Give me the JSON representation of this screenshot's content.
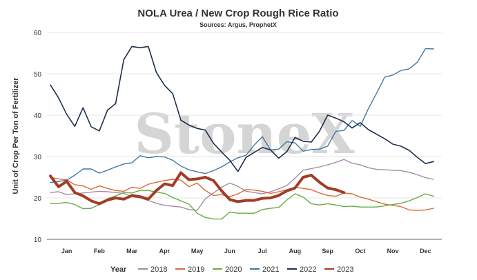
{
  "chart_data": {
    "type": "line",
    "title": "NOLA Urea / New Crop Rough Rice Ratio",
    "subtitle": "Sources: Argus, ProphetX",
    "xlabel": "",
    "ylabel": "Unit of Crop Per Ton of Fertilizer",
    "ylim": [
      10,
      60
    ],
    "yticks": [
      10,
      20,
      30,
      40,
      50,
      60
    ],
    "xlim": [
      0,
      12
    ],
    "month_labels": [
      "Jan",
      "Feb",
      "Mar",
      "Apr",
      "May",
      "Jun",
      "Jul",
      "Aug",
      "Sep",
      "Oct",
      "Nov",
      "Dec"
    ],
    "watermark": "StoneX",
    "legend_title": "Year",
    "legend_position": "bottom",
    "grid": "horizontal",
    "series": [
      {
        "name": "2018",
        "color": "#a58aa9",
        "width": 1.4,
        "x": [
          0.0,
          0.25,
          0.5,
          0.75,
          1.0,
          1.25,
          1.5,
          1.75,
          2.0,
          2.25,
          2.5,
          2.75,
          3.0,
          3.25,
          3.5,
          3.75,
          4.0,
          4.25,
          4.5,
          4.75,
          5.0,
          5.25,
          5.5,
          5.75,
          6.0,
          6.25,
          6.5,
          6.75,
          7.0,
          7.25,
          7.5,
          7.75,
          8.0,
          8.25,
          8.5,
          8.75,
          9.0,
          9.25,
          9.5,
          9.75,
          10.0,
          10.25,
          10.5,
          10.75,
          11.0,
          11.25,
          11.5,
          11.75
        ],
        "y": [
          21.3,
          21.5,
          20.8,
          21.0,
          21.2,
          21.4,
          21.6,
          21.5,
          21.3,
          21.1,
          20.3,
          20.0,
          19.4,
          18.7,
          18.2,
          18.0,
          17.8,
          17.2,
          17.0,
          19.8,
          21.2,
          22.6,
          23.6,
          22.8,
          21.6,
          21.3,
          21.0,
          21.5,
          22.2,
          23.0,
          24.8,
          26.7,
          27.1,
          27.5,
          28.0,
          28.6,
          29.3,
          28.4,
          28.0,
          27.3,
          26.9,
          26.8,
          26.7,
          26.6,
          26.2,
          25.6,
          24.9,
          24.5
        ]
      },
      {
        "name": "2019",
        "color": "#d86a35",
        "width": 1.4,
        "x": [
          0.0,
          0.25,
          0.5,
          0.75,
          1.0,
          1.25,
          1.5,
          1.75,
          2.0,
          2.25,
          2.5,
          2.75,
          3.0,
          3.25,
          3.5,
          3.75,
          4.0,
          4.25,
          4.5,
          4.75,
          5.0,
          5.25,
          5.5,
          5.75,
          6.0,
          6.25,
          6.5,
          6.75,
          7.0,
          7.25,
          7.5,
          7.75,
          8.0,
          8.25,
          8.5,
          8.75,
          9.0,
          9.25,
          9.5,
          9.75,
          10.0,
          10.25,
          10.5,
          10.75,
          11.0,
          11.25,
          11.5,
          11.75
        ],
        "y": [
          25.0,
          24.6,
          24.4,
          23.2,
          22.9,
          22.1,
          22.9,
          22.3,
          21.8,
          21.6,
          22.6,
          22.3,
          23.3,
          23.8,
          24.2,
          24.5,
          24.3,
          22.7,
          23.6,
          21.8,
          20.6,
          20.8,
          20.3,
          21.0,
          22.0,
          21.9,
          21.6,
          21.1,
          21.5,
          22.0,
          22.6,
          22.3,
          22.0,
          21.2,
          20.6,
          20.4,
          21.2,
          21.0,
          20.2,
          19.7,
          19.1,
          18.5,
          18.2,
          17.9,
          17.1,
          17.0,
          17.1,
          17.5
        ]
      },
      {
        "name": "2020",
        "color": "#6aaa42",
        "width": 1.4,
        "x": [
          0.0,
          0.25,
          0.5,
          0.75,
          1.0,
          1.25,
          1.5,
          1.75,
          2.0,
          2.25,
          2.5,
          2.75,
          3.0,
          3.25,
          3.5,
          3.75,
          4.0,
          4.25,
          4.5,
          4.75,
          5.0,
          5.25,
          5.5,
          5.75,
          6.0,
          6.25,
          6.5,
          6.75,
          7.0,
          7.25,
          7.5,
          7.75,
          8.0,
          8.25,
          8.5,
          8.75,
          9.0,
          9.25,
          9.5,
          9.75,
          10.0,
          10.25,
          10.5,
          10.75,
          11.0,
          11.25,
          11.5,
          11.75
        ],
        "y": [
          18.7,
          18.7,
          18.9,
          18.4,
          17.4,
          17.5,
          18.4,
          19.8,
          20.5,
          21.3,
          21.2,
          21.8,
          21.8,
          21.4,
          21.1,
          20.1,
          19.3,
          18.5,
          16.3,
          15.3,
          14.9,
          14.9,
          16.6,
          16.3,
          16.3,
          16.3,
          17.2,
          17.5,
          17.7,
          19.5,
          21.0,
          20.2,
          18.6,
          18.3,
          18.6,
          18.3,
          17.9,
          18.0,
          17.8,
          17.8,
          17.8,
          18.1,
          18.4,
          18.7,
          19.3,
          20.1,
          21.0,
          20.4
        ]
      },
      {
        "name": "2021",
        "color": "#3e78a3",
        "width": 1.4,
        "x": [
          0.0,
          0.25,
          0.5,
          0.75,
          1.0,
          1.25,
          1.5,
          1.75,
          2.0,
          2.25,
          2.5,
          2.75,
          3.0,
          3.25,
          3.5,
          3.75,
          4.0,
          4.25,
          4.5,
          4.75,
          5.0,
          5.25,
          5.5,
          5.75,
          6.0,
          6.25,
          6.5,
          6.75,
          7.0,
          7.25,
          7.5,
          7.75,
          8.0,
          8.25,
          8.5,
          8.75,
          9.0,
          9.25,
          9.5,
          9.75,
          10.0,
          10.25,
          10.5,
          10.75,
          11.0,
          11.25,
          11.5,
          11.75
        ],
        "y": [
          23.7,
          24.0,
          24.3,
          25.5,
          27.0,
          27.0,
          26.0,
          26.7,
          27.5,
          28.2,
          28.5,
          30.2,
          29.7,
          30.0,
          29.9,
          29.1,
          27.7,
          26.8,
          26.3,
          25.9,
          26.6,
          27.5,
          28.7,
          29.7,
          30.3,
          32.8,
          34.8,
          31.6,
          31.8,
          33.6,
          33.3,
          31.3,
          31.7,
          31.8,
          32.5,
          36.1,
          36.3,
          38.7,
          37.3,
          41.6,
          45.3,
          49.2,
          49.7,
          50.8,
          51.2,
          52.8,
          56.1,
          56.0
        ]
      },
      {
        "name": "2022",
        "color": "#1c2f4d",
        "width": 1.6,
        "x": [
          0.0,
          0.25,
          0.5,
          0.75,
          1.0,
          1.25,
          1.5,
          1.75,
          2.0,
          2.25,
          2.5,
          2.75,
          3.0,
          3.25,
          3.5,
          3.75,
          4.0,
          4.25,
          4.5,
          4.75,
          5.0,
          5.25,
          5.5,
          5.75,
          6.0,
          6.25,
          6.5,
          6.75,
          7.0,
          7.25,
          7.5,
          7.75,
          8.0,
          8.25,
          8.5,
          8.75,
          9.0,
          9.25,
          9.5,
          9.75,
          10.0,
          10.25,
          10.5,
          10.75,
          11.0,
          11.25,
          11.5,
          11.75
        ],
        "y": [
          47.3,
          44.2,
          40.2,
          37.3,
          41.8,
          37.2,
          36.2,
          41.2,
          42.8,
          53.4,
          56.6,
          56.3,
          56.6,
          50.3,
          47.2,
          45.2,
          38.8,
          37.6,
          36.8,
          36.4,
          33.2,
          31.1,
          29.1,
          26.4,
          29.8,
          31.0,
          32.2,
          31.6,
          29.6,
          31.2,
          34.6,
          33.7,
          33.5,
          36.1,
          40.0,
          39.3,
          38.4,
          36.9,
          38.2,
          36.5,
          35.4,
          34.3,
          33.0,
          32.5,
          31.5,
          29.8,
          28.3,
          28.8
        ]
      },
      {
        "name": "2023",
        "color": "#a33c25",
        "width": 4.0,
        "x": [
          0.0,
          0.25,
          0.5,
          0.75,
          1.0,
          1.25,
          1.5,
          1.75,
          2.0,
          2.25,
          2.5,
          2.75,
          3.0,
          3.25,
          3.5,
          3.75,
          4.0,
          4.25,
          4.5,
          4.75,
          5.0,
          5.25,
          5.5,
          5.75,
          6.0,
          6.25,
          6.5,
          6.75,
          7.0,
          7.25,
          7.5,
          7.75,
          8.0,
          8.25,
          8.5,
          8.75,
          9.0
        ],
        "y": [
          25.3,
          22.7,
          24.0,
          21.3,
          20.5,
          19.3,
          18.6,
          19.5,
          20.0,
          19.7,
          20.6,
          20.3,
          19.7,
          21.8,
          23.4,
          23.0,
          26.1,
          24.4,
          24.6,
          25.0,
          24.2,
          21.7,
          19.6,
          19.1,
          19.4,
          19.4,
          19.9,
          20.0,
          20.6,
          21.7,
          22.4,
          25.0,
          25.5,
          23.8,
          22.4,
          22.0,
          21.3
        ]
      }
    ]
  }
}
